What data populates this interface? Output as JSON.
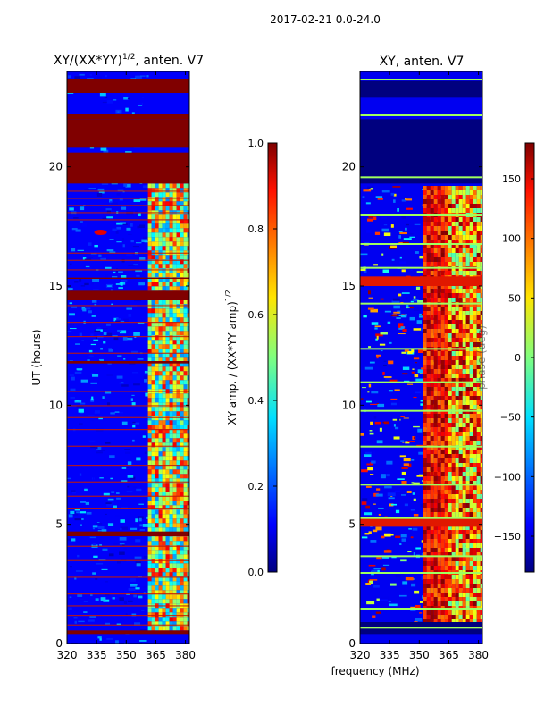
{
  "figure": {
    "suptitle": "2017-02-21 0.0-24.0",
    "common_xlabel": "frequency (MHz)",
    "colormap_note": "jet"
  },
  "chart_data": [
    {
      "type": "heatmap",
      "title_base": "XY/(XX*YY)",
      "title_exp": "1/2",
      "title_tail": ", anten. V7",
      "xlabel": "",
      "ylabel": "UT (hours)",
      "xlim": [
        320,
        382
      ],
      "ylim": [
        0,
        24
      ],
      "xticks": [
        320,
        335,
        350,
        365,
        380
      ],
      "yticks": [
        0,
        5,
        10,
        15,
        20
      ],
      "colorbar": {
        "label_base": "XY amp. / (XX*YY amp)",
        "label_exp": "1/2",
        "range": [
          0.0,
          1.0
        ],
        "ticks": [
          "0.0",
          "0.2",
          "0.4",
          "0.6",
          "0.8",
          "1.0"
        ]
      },
      "background_value": 0.12,
      "saturated_bands_hours": [
        [
          23.1,
          23.7
        ],
        [
          22.0,
          22.2
        ],
        [
          20.8,
          22.0
        ],
        [
          19.3,
          20.6
        ],
        [
          14.4,
          14.8
        ],
        [
          4.5,
          4.7
        ],
        [
          0.4,
          0.55
        ],
        [
          11.75,
          11.85
        ],
        [
          15.3,
          15.35
        ]
      ],
      "line_hours": [
        19.0,
        18.7,
        18.4,
        18.1,
        17.8,
        16.4,
        16.1,
        15.7,
        14.2,
        13.5,
        12.9,
        12.2,
        10.6,
        10.0,
        9.5,
        9.0,
        8.3,
        7.5,
        6.8,
        6.2,
        5.7,
        4.1,
        3.5,
        2.8,
        2.1,
        1.6,
        1.2,
        0.8
      ],
      "hot_freq_band_mhz": [
        361,
        382
      ],
      "hot_freq_value": 0.75,
      "hot_hours": [
        0.6,
        19.3
      ]
    },
    {
      "type": "heatmap",
      "title": "XY, anten. V7",
      "xlabel": "frequency (MHz)",
      "ylabel": "",
      "xlim": [
        320,
        382
      ],
      "ylim": [
        0,
        24
      ],
      "xticks": [
        320,
        335,
        350,
        365,
        380
      ],
      "yticks": [
        0,
        5,
        10,
        15,
        20
      ],
      "colorbar": {
        "label": "phase (deg)",
        "range": [
          -180,
          180
        ],
        "ticks": [
          "−150",
          "−100",
          "−50",
          "0",
          "50",
          "100",
          "150"
        ]
      },
      "background_value": -140,
      "low_bands_hours": [
        [
          22.9,
          23.6
        ],
        [
          19.3,
          22.0
        ],
        [
          0.4,
          0.9
        ]
      ],
      "green_lines_hours": [
        23.7,
        22.2,
        19.6,
        18.0,
        16.8,
        15.8,
        14.3,
        12.4,
        11.0,
        9.8,
        8.3,
        6.7,
        5.3,
        3.7,
        3.0,
        1.5,
        0.7
      ],
      "red_band_hours": [
        15.0,
        15.4
      ],
      "red_band2_hours": [
        4.9,
        5.3
      ],
      "hot_freq_band_mhz": [
        352,
        382
      ],
      "hot_hours": [
        0.9,
        19.2
      ]
    }
  ]
}
